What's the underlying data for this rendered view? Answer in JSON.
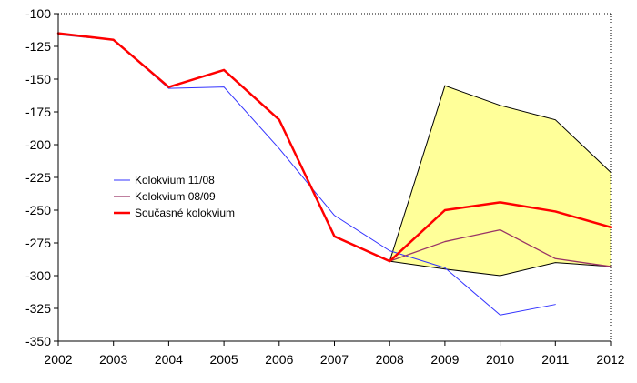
{
  "chart_data": {
    "type": "line",
    "x": [
      2002,
      2003,
      2004,
      2005,
      2006,
      2007,
      2008,
      2009,
      2010,
      2011,
      2012
    ],
    "xlim": [
      2002,
      2012
    ],
    "ylim": [
      -350,
      -100
    ],
    "yticks": [
      -100,
      -125,
      -150,
      -175,
      -200,
      -225,
      -250,
      -275,
      -300,
      -325,
      -350
    ],
    "grid": false,
    "legend_position": "left-middle",
    "band": {
      "x": [
        2008,
        2009,
        2010,
        2011,
        2012
      ],
      "upper": [
        -289,
        -155,
        -170,
        -181,
        -221
      ],
      "lower": [
        -289,
        -295,
        -300,
        -290,
        -293
      ],
      "fill_color": "#FFFF99",
      "edge_color": "#000000"
    },
    "series": [
      {
        "name": "Kolokvium 11/08",
        "color": "#3333FF",
        "width": 1,
        "x": [
          2002,
          2003,
          2004,
          2005,
          2006,
          2007,
          2008,
          2009,
          2010,
          2011
        ],
        "values": [
          -115,
          -120,
          -157,
          -156,
          -203,
          -254,
          -281,
          -294,
          -330,
          -322
        ]
      },
      {
        "name": "Kolokvium 08/09",
        "color": "#993366",
        "width": 1.3,
        "x": [
          2002,
          2003,
          2004,
          2005,
          2006,
          2007,
          2008,
          2009,
          2010,
          2011,
          2012
        ],
        "values": [
          -116,
          -120,
          -156,
          -143,
          -181,
          -270,
          -289,
          -274,
          -265,
          -287,
          -293
        ]
      },
      {
        "name": "Současné kolokvium",
        "color": "#FF0000",
        "width": 2.5,
        "x": [
          2002,
          2003,
          2004,
          2005,
          2006,
          2007,
          2008,
          2009,
          2010,
          2011,
          2012
        ],
        "values": [
          -115,
          -120,
          -156,
          -143,
          -181,
          -270,
          -289,
          -250,
          -244,
          -251,
          -263
        ]
      }
    ]
  }
}
